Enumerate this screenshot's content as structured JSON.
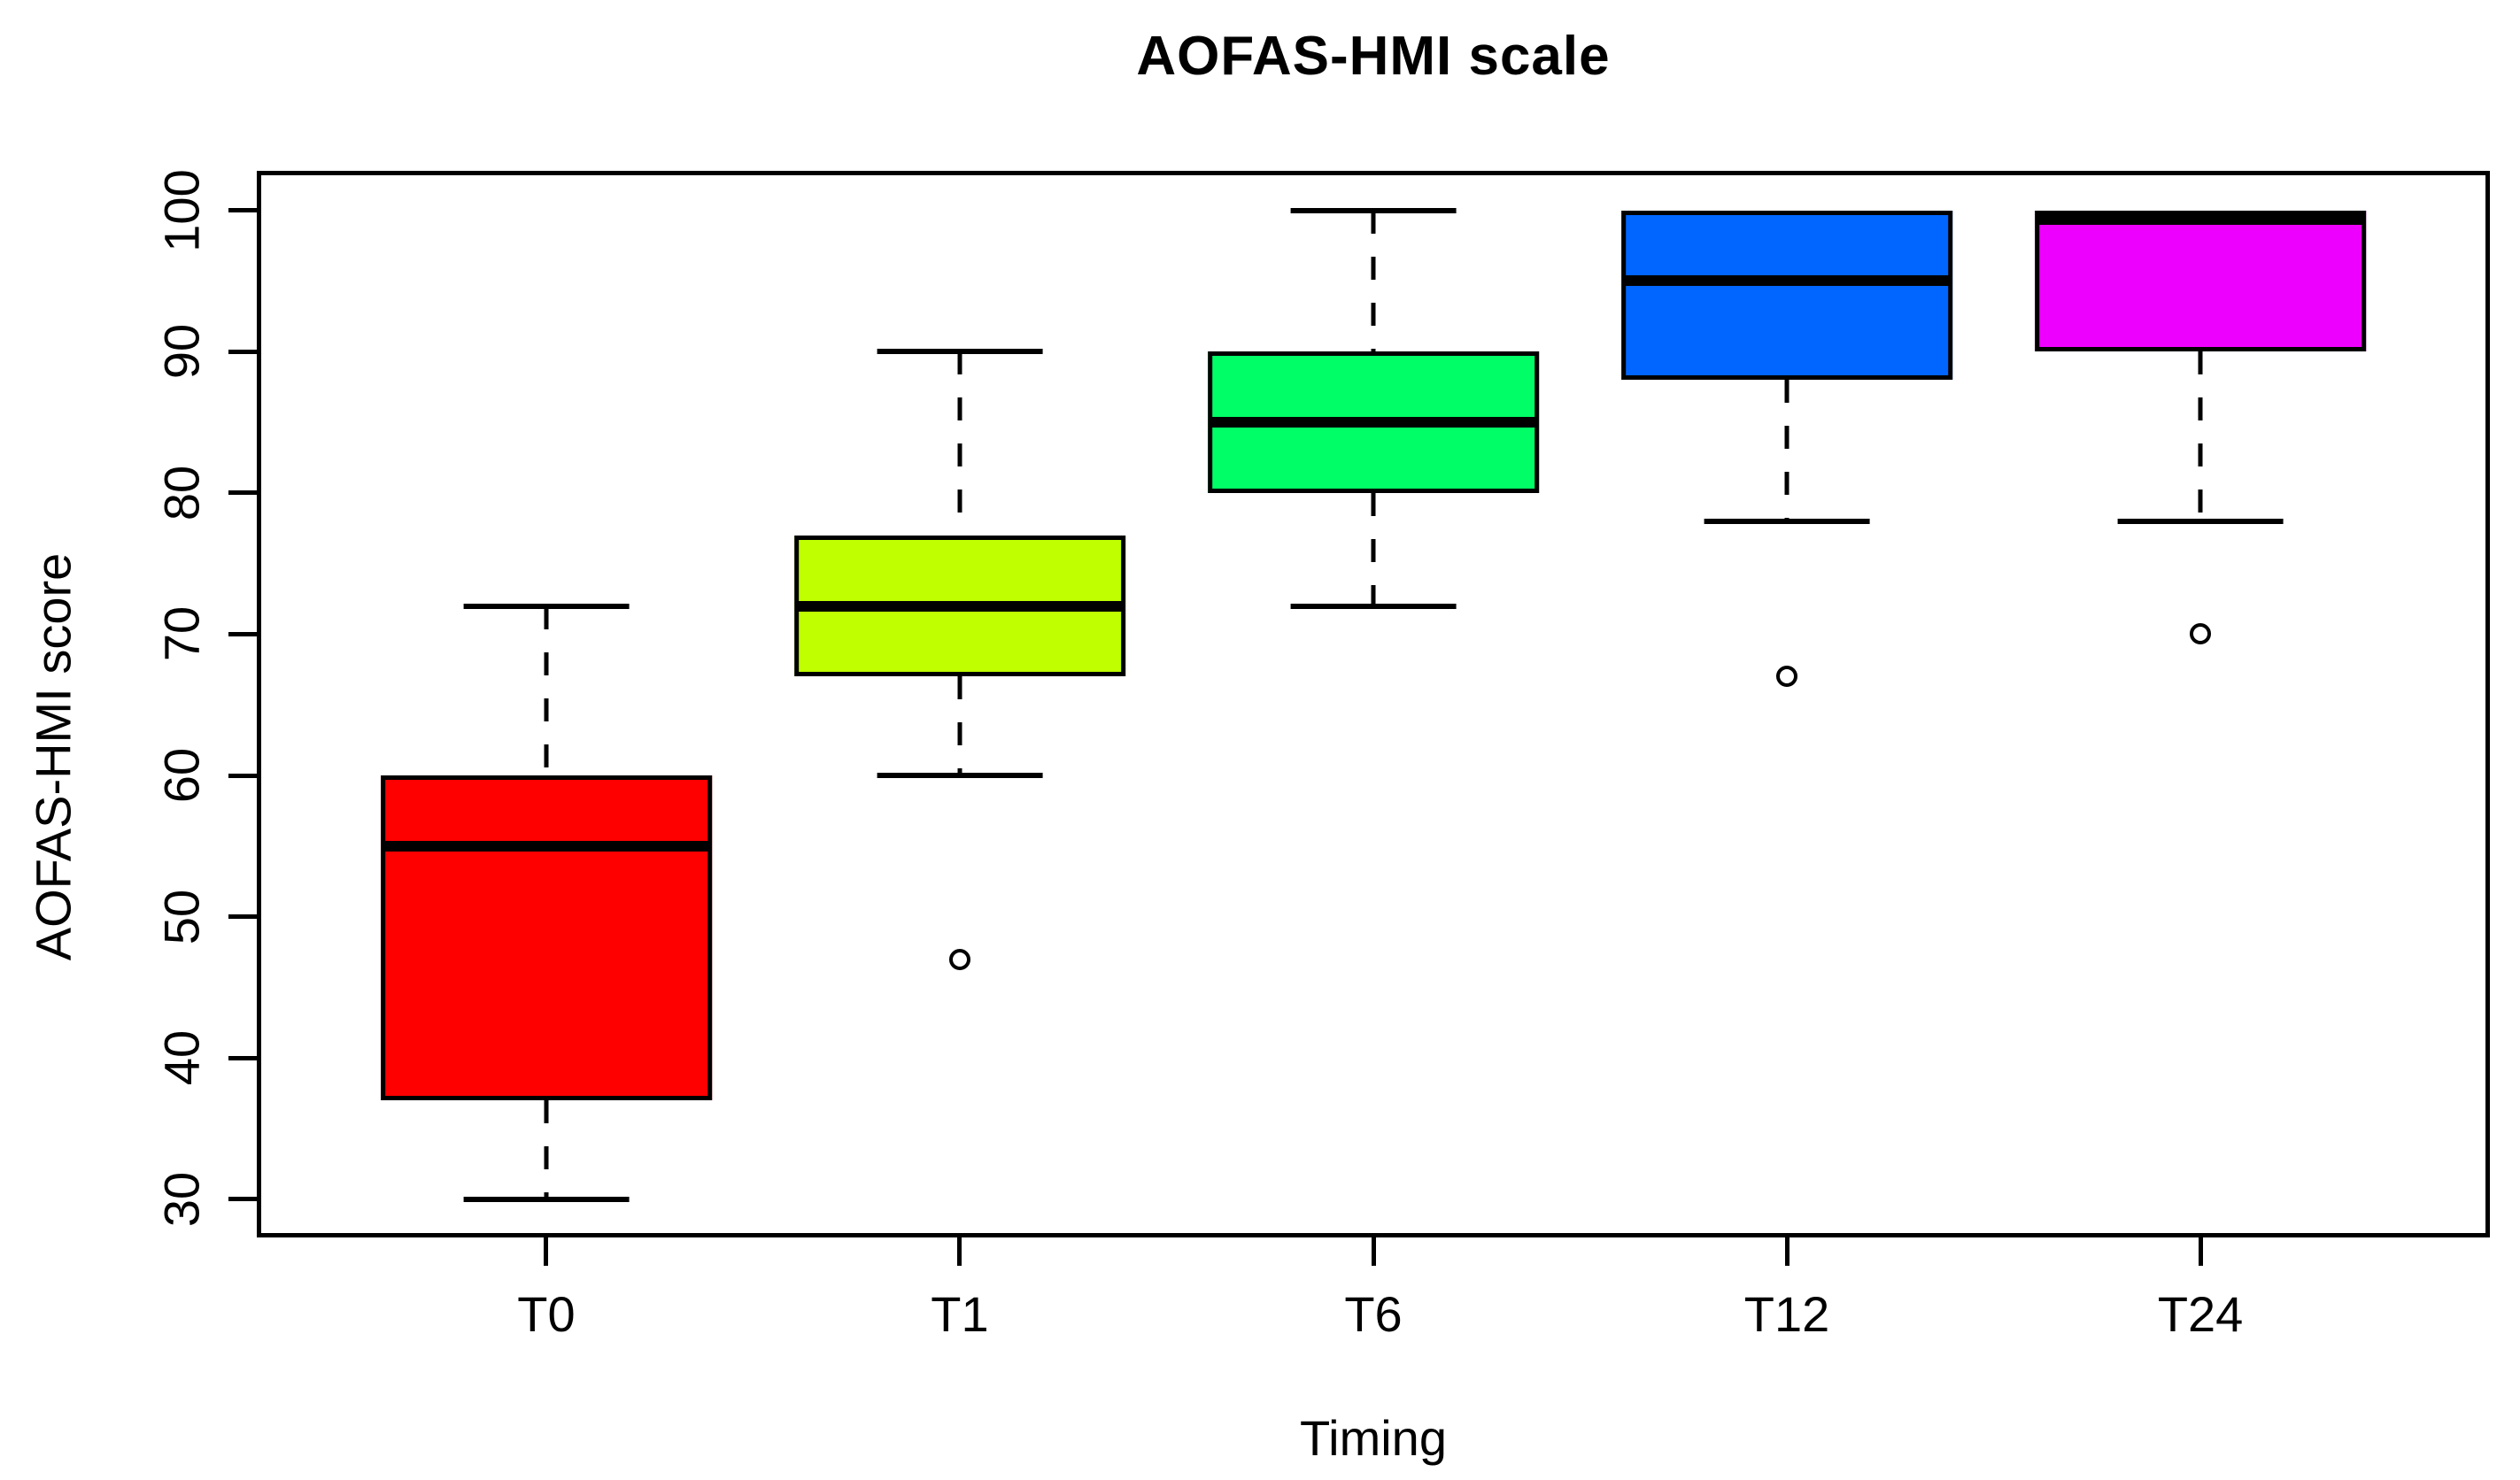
{
  "title": "AOFAS-HMI scale",
  "background_color": "#FFFFFF",
  "axis_color": "#000000",
  "chart_data": {
    "type": "boxplot",
    "title": "AOFAS-HMI scale",
    "xlabel": "Timing",
    "ylabel": "AOFAS-HMI score",
    "categories": [
      "T0",
      "T1",
      "T6",
      "T12",
      "T24"
    ],
    "y_ticks": [
      30,
      40,
      50,
      60,
      70,
      80,
      90,
      100
    ],
    "ylim": [
      27.3,
      102.8
    ],
    "xlim": [
      0.3,
      5.7
    ],
    "grid": false,
    "legend": "none",
    "box_width": 0.8,
    "cap_width": 0.4,
    "series": [
      {
        "label": "T0",
        "color": "#FF0000",
        "whisker_low": 30,
        "q1": 37,
        "median": 55,
        "q3": 60,
        "whisker_high": 72,
        "outliers": []
      },
      {
        "label": "T1",
        "color": "#BFFF00",
        "whisker_low": 60,
        "q1": 67,
        "median": 72,
        "q3": 77,
        "whisker_high": 90,
        "outliers": [
          47
        ]
      },
      {
        "label": "T6",
        "color": "#00FF66",
        "whisker_low": 72,
        "q1": 80,
        "median": 85,
        "q3": 90,
        "whisker_high": 100,
        "outliers": []
      },
      {
        "label": "T12",
        "color": "#0066FF",
        "whisker_low": 78,
        "q1": 88,
        "median": 95,
        "q3": 100,
        "whisker_high": 100,
        "outliers": [
          67
        ]
      },
      {
        "label": "T24",
        "color": "#EE00FF",
        "whisker_low": 78,
        "q1": 90,
        "median": 100,
        "q3": 100,
        "whisker_high": 100,
        "outliers": [
          70
        ]
      }
    ]
  }
}
